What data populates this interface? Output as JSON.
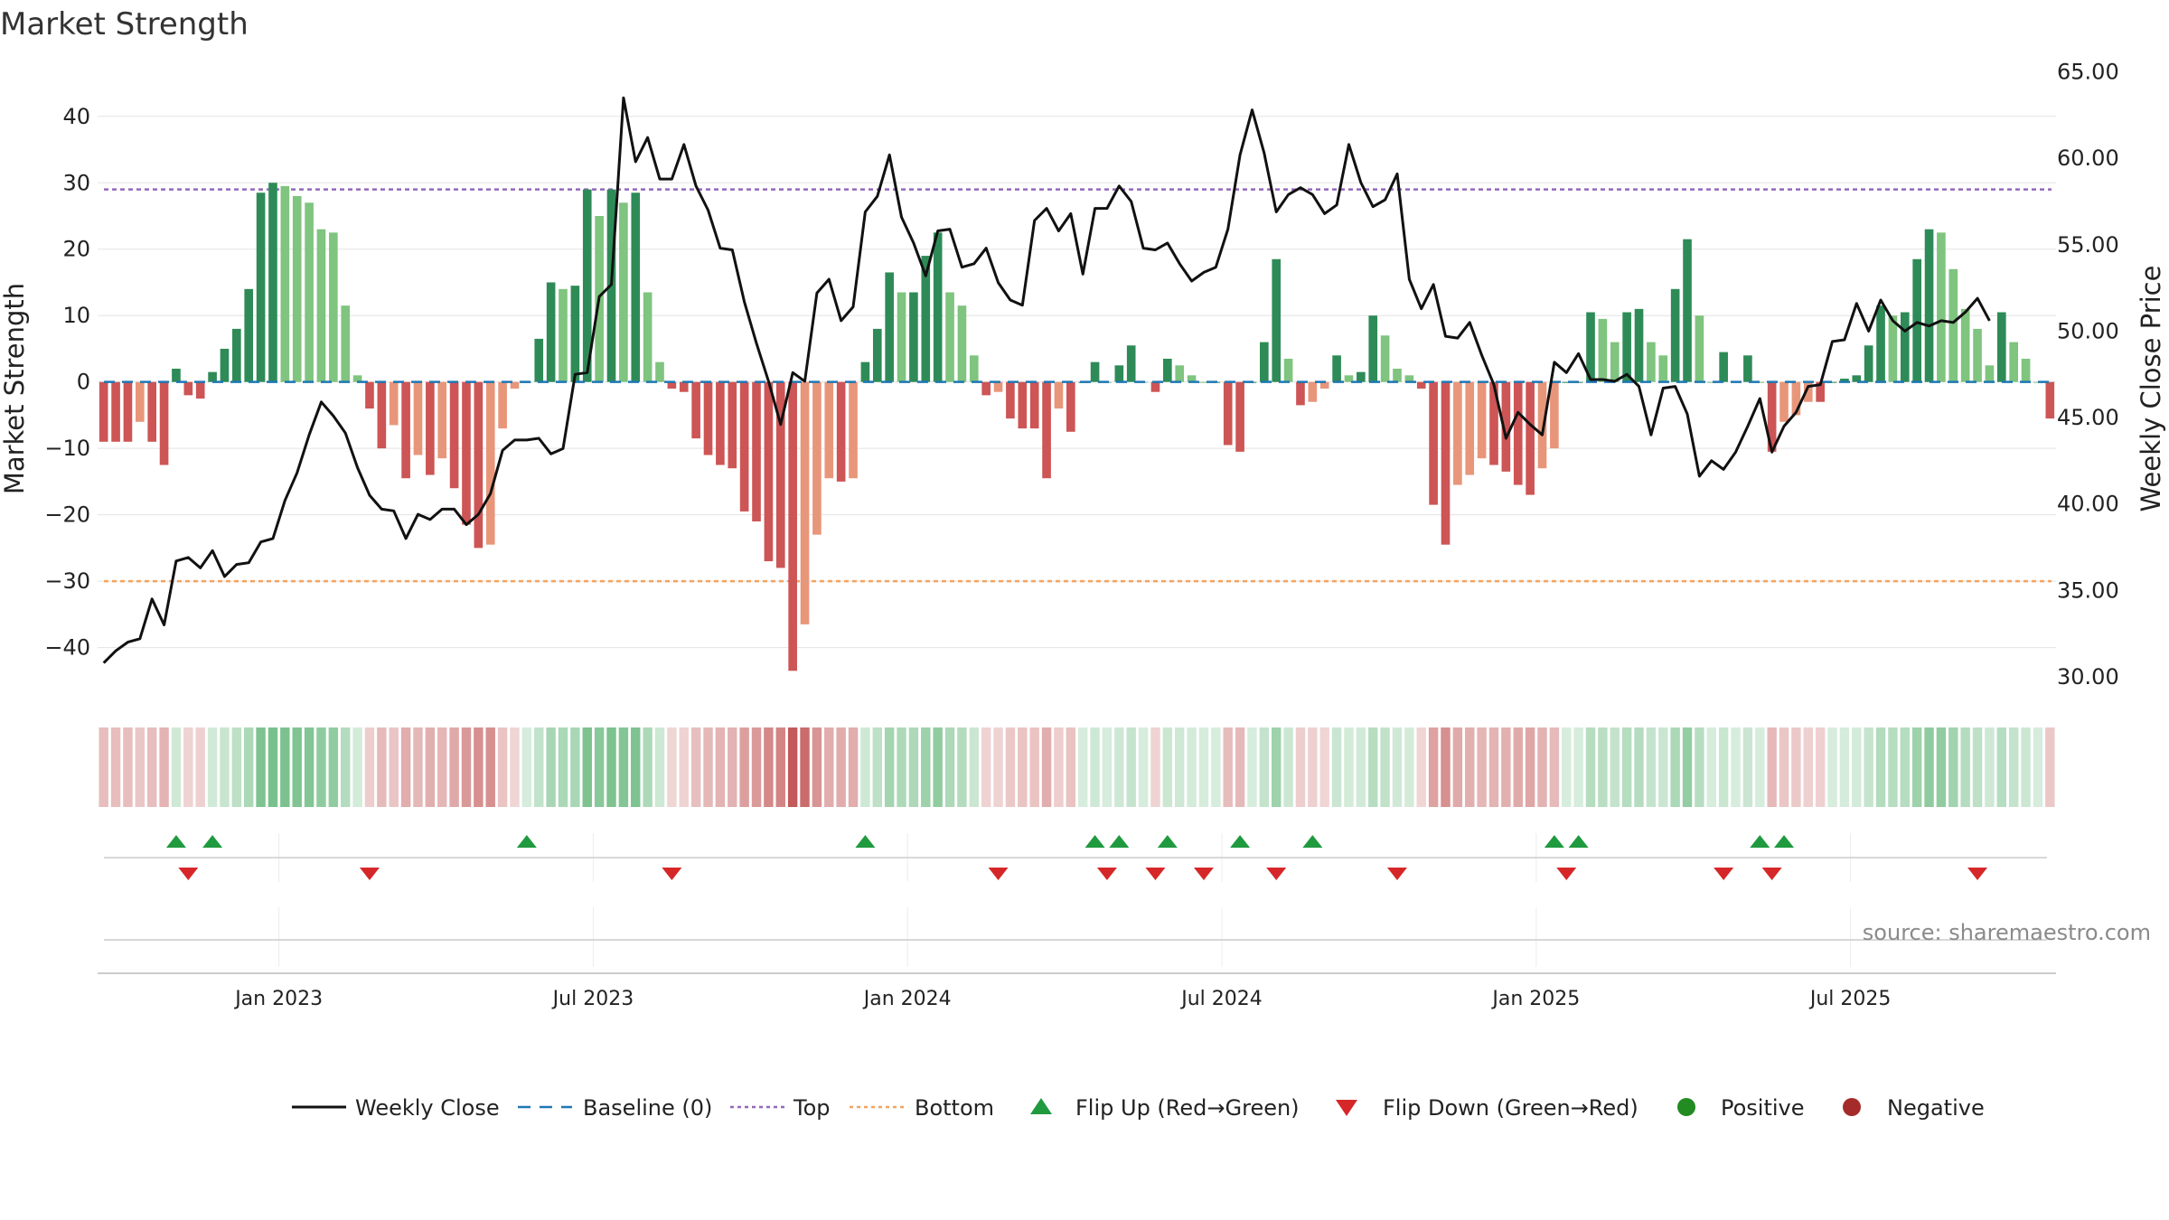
{
  "chart_data": {
    "type": "bar+line",
    "title": "Market Strength",
    "ylabel_left": "Market Strength",
    "ylabel_right": "Weekly Close Price",
    "ylim_left": [
      -47,
      48
    ],
    "ylim_right": [
      29,
      65.5
    ],
    "yticks_left": [
      "40",
      "30",
      "20",
      "10",
      "0",
      "−10",
      "−20",
      "−30",
      "−40"
    ],
    "yticks_left_values": [
      40,
      30,
      20,
      10,
      0,
      -10,
      -20,
      -30,
      -40
    ],
    "yticks_right": [
      "65.00",
      "60.00",
      "55.00",
      "50.00",
      "45.00",
      "40.00",
      "35.00",
      "30.00"
    ],
    "yticks_right_values": [
      65,
      60,
      55,
      50,
      45,
      40,
      35,
      30
    ],
    "top_line": 29,
    "bottom_line": -30,
    "baseline": 0,
    "xticks": [
      "Jan 2023",
      "Jul 2023",
      "Jan 2024",
      "Jul 2024",
      "Jan 2025",
      "Jul 2025"
    ],
    "xticks_week_index": [
      14.5,
      40.5,
      66.5,
      92.5,
      118.5,
      144.5
    ],
    "strength": [
      -9,
      -9,
      -9,
      -6,
      -9,
      -12.5,
      2,
      -2,
      -2.5,
      1.5,
      5,
      8,
      14,
      28.5,
      30,
      29.5,
      28,
      27,
      23,
      22.5,
      11.5,
      1,
      -4,
      -10,
      -6.5,
      -14.5,
      -11,
      -14,
      -11.5,
      -16,
      -21.5,
      -25,
      -24.5,
      -7,
      -1,
      0,
      6.5,
      15,
      14,
      14.5,
      29,
      25,
      29,
      27,
      28.5,
      13.5,
      3,
      -1,
      -1.5,
      -8.5,
      -11,
      -12.5,
      -13,
      -19.5,
      -21,
      -27,
      -28,
      -43.5,
      -36.5,
      -23,
      -14.5,
      -15,
      -14.5,
      3,
      8,
      16.5,
      13.5,
      13.5,
      19,
      22.5,
      13.5,
      11.5,
      4,
      -2,
      -1.5,
      -5.5,
      -7,
      -7,
      -14.5,
      -4,
      -7.5,
      0,
      3,
      0,
      2.5,
      5.5,
      0,
      -1.5,
      3.5,
      2.5,
      1,
      0,
      0,
      -9.5,
      -10.5,
      0,
      6,
      18.5,
      3.5,
      -3.5,
      -3,
      -1,
      4,
      1,
      1.5,
      10,
      7,
      2,
      1,
      -1,
      -18.5,
      -24.5,
      -15.5,
      -14,
      -11.5,
      -12.5,
      -13.5,
      -15.5,
      -17,
      -13,
      -10,
      0,
      0,
      10.5,
      9.5,
      6,
      10.5,
      11,
      6,
      4,
      14,
      21.5,
      10,
      0,
      4.5,
      0,
      4,
      0,
      -10.5,
      -6,
      -5,
      -3,
      -3,
      0,
      0.5,
      1,
      5.5,
      11.5,
      10,
      10.5,
      18.5,
      23,
      22.5,
      17,
      11,
      8,
      2.5,
      10.5,
      6,
      3.5,
      0,
      -5.5
    ],
    "heat_strength": [
      -9,
      -9,
      -9,
      -6,
      -9,
      -12.5,
      2,
      -2,
      -2.5,
      1.5,
      5,
      8,
      14,
      28.5,
      30,
      29.5,
      28,
      27,
      23,
      22.5,
      11.5,
      1,
      -4,
      -10,
      -6.5,
      -14.5,
      -11,
      -14,
      -11.5,
      -16,
      -21.5,
      -25,
      -24.5,
      -7,
      -1,
      0,
      6.5,
      15,
      14,
      14.5,
      29,
      25,
      29,
      27,
      28.5,
      13.5,
      3,
      -1,
      -1.5,
      -8.5,
      -11,
      -12.5,
      -13,
      -19.5,
      -21,
      -27,
      -28,
      -43.5,
      -36.5,
      -23,
      -14.5,
      -15,
      -14.5,
      3,
      8,
      16.5,
      13.5,
      13.5,
      19,
      22.5,
      13.5,
      11.5,
      4,
      -2,
      -1.5,
      -5.5,
      -7,
      -7,
      -14.5,
      -4,
      -7.5,
      0,
      3,
      0,
      2.5,
      5.5,
      0,
      -1.5,
      3.5,
      2.5,
      1,
      0,
      0,
      -9.5,
      -10.5,
      0,
      6,
      18.5,
      3.5,
      -3.5,
      -3,
      -1,
      4,
      1,
      1.5,
      10,
      7,
      2,
      1,
      -1,
      -18.5,
      -24.5,
      -15.5,
      -14,
      -11.5,
      -12.5,
      -13.5,
      -15.5,
      -17,
      -13,
      -10,
      0,
      0,
      10.5,
      9.5,
      6,
      10.5,
      11,
      6,
      4,
      14,
      21.5,
      10,
      0,
      4.5,
      0,
      4,
      0,
      -10.5,
      -6,
      -5,
      -3,
      -3,
      0,
      0.5,
      1,
      5.5,
      11.5,
      10,
      10.5,
      18.5,
      23,
      22.5,
      17,
      11,
      8,
      2.5,
      10.5,
      6,
      3.5,
      0,
      -5.5
    ],
    "weekly_close": [
      [
        0,
        30.8
      ],
      [
        1,
        31.5
      ],
      [
        2,
        32
      ],
      [
        3,
        32.2
      ],
      [
        4,
        34.5
      ],
      [
        5,
        33
      ],
      [
        6,
        36.7
      ],
      [
        7,
        36.9
      ],
      [
        8,
        36.3
      ],
      [
        9,
        37.3
      ],
      [
        10,
        35.8
      ],
      [
        11,
        36.5
      ],
      [
        12,
        36.6
      ],
      [
        13,
        37.8
      ],
      [
        14,
        38
      ],
      [
        15,
        40.2
      ],
      [
        16,
        41.8
      ],
      [
        17,
        44
      ],
      [
        18,
        45.9
      ],
      [
        19,
        45.1
      ],
      [
        20,
        44.1
      ],
      [
        21,
        42.1
      ],
      [
        22,
        40.5
      ],
      [
        23,
        39.7
      ],
      [
        24,
        39.6
      ],
      [
        25,
        38
      ],
      [
        26,
        39.4
      ],
      [
        27,
        39.1
      ],
      [
        28,
        39.7
      ],
      [
        29,
        39.7
      ],
      [
        30,
        38.8
      ],
      [
        31,
        39.4
      ],
      [
        32,
        40.6
      ],
      [
        33,
        43.1
      ],
      [
        34,
        43.7
      ],
      [
        35,
        43.7
      ],
      [
        36,
        43.8
      ],
      [
        37,
        42.9
      ],
      [
        38,
        43.2
      ],
      [
        39,
        47.5
      ],
      [
        40,
        47.6
      ],
      [
        41,
        52
      ],
      [
        42,
        52.7
      ],
      [
        43,
        63.5
      ],
      [
        44,
        59.8
      ],
      [
        45,
        61.2
      ],
      [
        46,
        58.8
      ],
      [
        47,
        58.8
      ],
      [
        48,
        60.8
      ],
      [
        49,
        58.4
      ],
      [
        50,
        57
      ],
      [
        51,
        54.8
      ],
      [
        52,
        54.7
      ],
      [
        53,
        51.7
      ],
      [
        54,
        49.3
      ],
      [
        55,
        47.1
      ],
      [
        56,
        44.6
      ],
      [
        57,
        47.6
      ],
      [
        58,
        47.1
      ],
      [
        59,
        52.2
      ],
      [
        60,
        53
      ],
      [
        61,
        50.6
      ],
      [
        62,
        51.4
      ],
      [
        63,
        56.9
      ],
      [
        64,
        57.8
      ],
      [
        65,
        60.2
      ],
      [
        66,
        56.6
      ],
      [
        67,
        55.1
      ],
      [
        68,
        53.2
      ],
      [
        69,
        55.8
      ],
      [
        70,
        55.9
      ],
      [
        71,
        53.7
      ],
      [
        72,
        53.9
      ],
      [
        73,
        54.8
      ],
      [
        74,
        52.8
      ],
      [
        75,
        51.8
      ],
      [
        76,
        51.5
      ],
      [
        77,
        56.4
      ],
      [
        78,
        57.1
      ],
      [
        79,
        55.8
      ],
      [
        80,
        56.8
      ],
      [
        81,
        53.3
      ],
      [
        82,
        57.1
      ],
      [
        83,
        57.1
      ],
      [
        84,
        58.4
      ],
      [
        85,
        57.5
      ],
      [
        86,
        54.8
      ],
      [
        87,
        54.7
      ],
      [
        88,
        55.1
      ],
      [
        89,
        53.9
      ],
      [
        90,
        52.9
      ],
      [
        91,
        53.4
      ],
      [
        92,
        53.7
      ],
      [
        93,
        55.9
      ],
      [
        94,
        60.2
      ],
      [
        95,
        62.8
      ],
      [
        96,
        60.3
      ],
      [
        97,
        56.9
      ],
      [
        98,
        57.9
      ],
      [
        99,
        58.3
      ],
      [
        100,
        57.9
      ],
      [
        101,
        56.8
      ],
      [
        102,
        57.3
      ],
      [
        103,
        60.8
      ],
      [
        104,
        58.6
      ],
      [
        105,
        57.2
      ],
      [
        106,
        57.6
      ],
      [
        107,
        59.1
      ],
      [
        108,
        53
      ],
      [
        109,
        51.3
      ],
      [
        110,
        52.7
      ],
      [
        111,
        49.7
      ],
      [
        112,
        49.6
      ],
      [
        113,
        50.5
      ],
      [
        114,
        48.6
      ],
      [
        115,
        46.9
      ],
      [
        116,
        43.8
      ],
      [
        117,
        45.3
      ],
      [
        118,
        44.6
      ],
      [
        119,
        44
      ],
      [
        120,
        48.2
      ],
      [
        121,
        47.6
      ],
      [
        122,
        48.7
      ],
      [
        123,
        47.2
      ],
      [
        124,
        47.2
      ],
      [
        125,
        47.1
      ],
      [
        126,
        47.5
      ],
      [
        127,
        46.8
      ],
      [
        128,
        44
      ],
      [
        129,
        46.7
      ],
      [
        130,
        46.8
      ],
      [
        131,
        45.2
      ],
      [
        132,
        41.6
      ],
      [
        133,
        42.5
      ],
      [
        134,
        42
      ],
      [
        135,
        43
      ],
      [
        136,
        44.5
      ],
      [
        137,
        46.1
      ],
      [
        138,
        43
      ],
      [
        139,
        44.5
      ],
      [
        140,
        45.3
      ],
      [
        141,
        46.8
      ],
      [
        142,
        46.9
      ],
      [
        143,
        49.4
      ],
      [
        144,
        49.5
      ],
      [
        145,
        51.6
      ],
      [
        146,
        50
      ],
      [
        147,
        51.8
      ],
      [
        148,
        50.6
      ],
      [
        149,
        50
      ],
      [
        150,
        50.5
      ],
      [
        151,
        50.3
      ],
      [
        152,
        50.6
      ],
      [
        153,
        50.5
      ],
      [
        154,
        51.1
      ],
      [
        155,
        51.9
      ],
      [
        156,
        50.6
      ]
    ],
    "flip_up_weeks": [
      6,
      9,
      35,
      63,
      82,
      84,
      88,
      94,
      100,
      120,
      122,
      137,
      139
    ],
    "flip_down_weeks": [
      7,
      22,
      47,
      74,
      83,
      87,
      91,
      97,
      107,
      121,
      134,
      138,
      155
    ],
    "legend": [
      "Weekly Close",
      "Baseline (0)",
      "Top",
      "Bottom",
      "Flip Up (Red→Green)",
      "Flip Down (Green→Red)",
      "Positive",
      "Negative"
    ],
    "legend_placement": "bottom-center",
    "colors": {
      "pos_strong": "#2e8b57",
      "pos_light": "#7fc47f",
      "neg_strong": "#cd5555",
      "neg_light": "#e8967a",
      "line": "#111111",
      "baseline": "#1f77b4",
      "top": "#9467bd",
      "bottom": "#f4a460",
      "flip_up": "#1f9a3f",
      "flip_down": "#d62728",
      "positive_dot": "#228b22",
      "negative_dot": "#a52a2a"
    }
  },
  "source": "source: sharemaestro.com"
}
